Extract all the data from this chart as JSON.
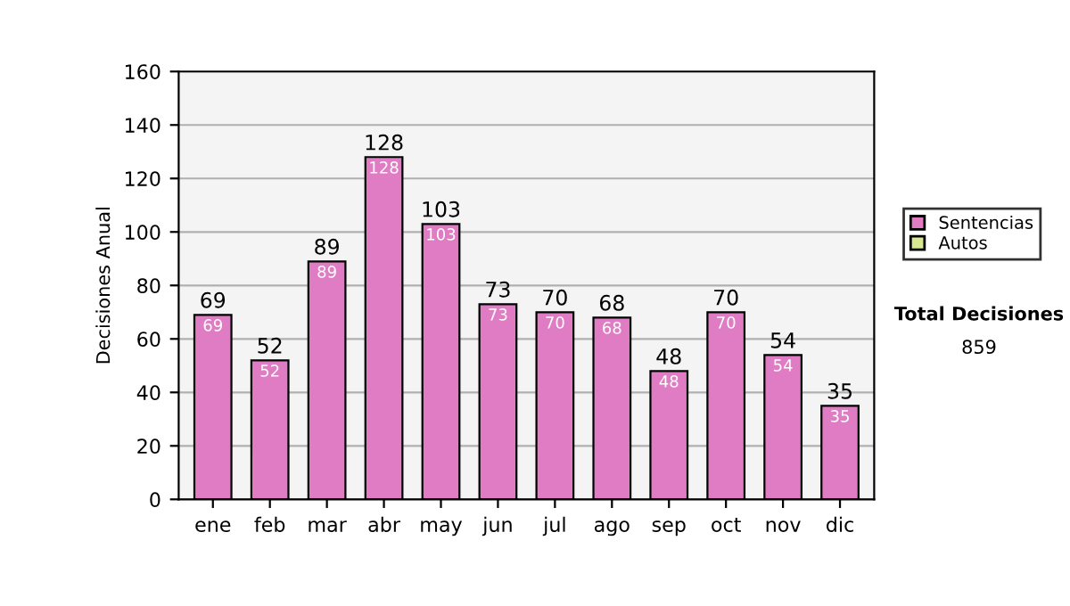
{
  "chart_data": {
    "type": "bar",
    "stacked": true,
    "ylabel": "Decisiones Anual",
    "categories": [
      "ene",
      "feb",
      "mar",
      "abr",
      "may",
      "jun",
      "jul",
      "ago",
      "sep",
      "oct",
      "nov",
      "dic"
    ],
    "series": [
      {
        "name": "Sentencias",
        "color": "#e07cc4",
        "values": [
          69,
          52,
          89,
          128,
          103,
          73,
          70,
          68,
          48,
          70,
          54,
          35
        ],
        "value_labels": [
          "69",
          "52",
          "89",
          "128",
          "103",
          "73",
          "70",
          "68",
          "48",
          "70",
          "54",
          "35"
        ]
      },
      {
        "name": "Autos",
        "color": "#d8e890",
        "values": [
          null,
          null,
          null,
          null,
          null,
          null,
          null,
          null,
          null,
          null,
          null,
          null
        ]
      }
    ],
    "totals": [
      "69",
      "52",
      "89",
      "128",
      "103",
      "73",
      "70",
      "68",
      "48",
      "70",
      "54",
      "35"
    ],
    "ylim": [
      0,
      160
    ],
    "yticks": [
      0,
      20,
      40,
      60,
      80,
      100,
      120,
      140,
      160
    ],
    "grid": "y",
    "legend": "right",
    "annotations": [
      "Total Decisiones",
      "859"
    ]
  }
}
